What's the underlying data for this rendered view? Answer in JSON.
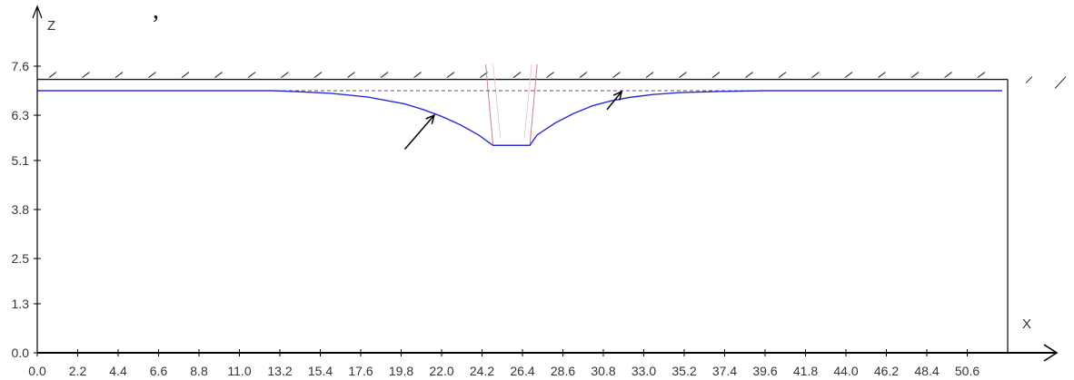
{
  "caption_fragment": ", ",
  "chart_data": {
    "type": "line",
    "title": "",
    "xlabel": "X",
    "ylabel": "Z",
    "xlim": [
      0.0,
      52.8
    ],
    "ylim": [
      0.0,
      7.6
    ],
    "x_ticks": [
      0.0,
      2.2,
      4.4,
      6.6,
      8.8,
      11.0,
      13.2,
      15.4,
      17.6,
      19.8,
      22.0,
      24.2,
      26.4,
      28.6,
      30.8,
      33.0,
      35.2,
      37.4,
      39.6,
      41.8,
      44.0,
      46.2,
      48.4,
      50.6
    ],
    "x_tick_labels": [
      "0.0",
      "2.2",
      "4.4",
      "6.6",
      "8.8",
      "11.0",
      "13.2",
      "15.4",
      "17.6",
      "19.8",
      "22.0",
      "24.2",
      "26.4",
      "28.6",
      "30.8",
      "33.0",
      "35.2",
      "37.4",
      "39.6",
      "41.8",
      "44.0",
      "46.2",
      "48.4",
      "50.6"
    ],
    "y_ticks": [
      0.0,
      1.3,
      2.5,
      3.8,
      5.1,
      6.3,
      7.6
    ],
    "y_tick_labels": [
      "0.0",
      "1.3",
      "2.5",
      "3.8",
      "5.1",
      "6.3",
      "7.6"
    ],
    "ground_surface_z": 7.25,
    "water_level_z": 6.95,
    "water_table_curve": {
      "x": [
        0.0,
        12.8,
        14.0,
        16.0,
        18.0,
        20.0,
        21.0,
        22.0,
        23.0,
        24.0,
        24.8,
        26.8,
        27.2,
        28.2,
        29.2,
        30.2,
        31.2,
        32.2,
        33.5,
        35.0,
        37.0,
        39.5,
        52.5
      ],
      "z": [
        6.95,
        6.95,
        6.93,
        6.88,
        6.78,
        6.6,
        6.45,
        6.27,
        6.05,
        5.78,
        5.5,
        5.5,
        5.78,
        6.1,
        6.35,
        6.55,
        6.68,
        6.77,
        6.85,
        6.9,
        6.93,
        6.95,
        6.95
      ]
    },
    "excavation_bottom": {
      "x": [
        24.8,
        26.8
      ],
      "z": 5.5
    },
    "arrow_annotations": [
      {
        "x_from": 20.0,
        "z_from": 5.4,
        "x_to": 21.6,
        "z_to": 6.3
      },
      {
        "x_from": 31.0,
        "z_from": 6.45,
        "x_to": 31.8,
        "z_to": 6.93
      }
    ],
    "colors": {
      "water_line": "#2b2bd4",
      "axis": "#000000",
      "ground_line": "#1a1a1a",
      "excavation": "#c8808c",
      "hatch": "#222222",
      "dashed": "#555555"
    },
    "grid": false,
    "legend": "none"
  }
}
